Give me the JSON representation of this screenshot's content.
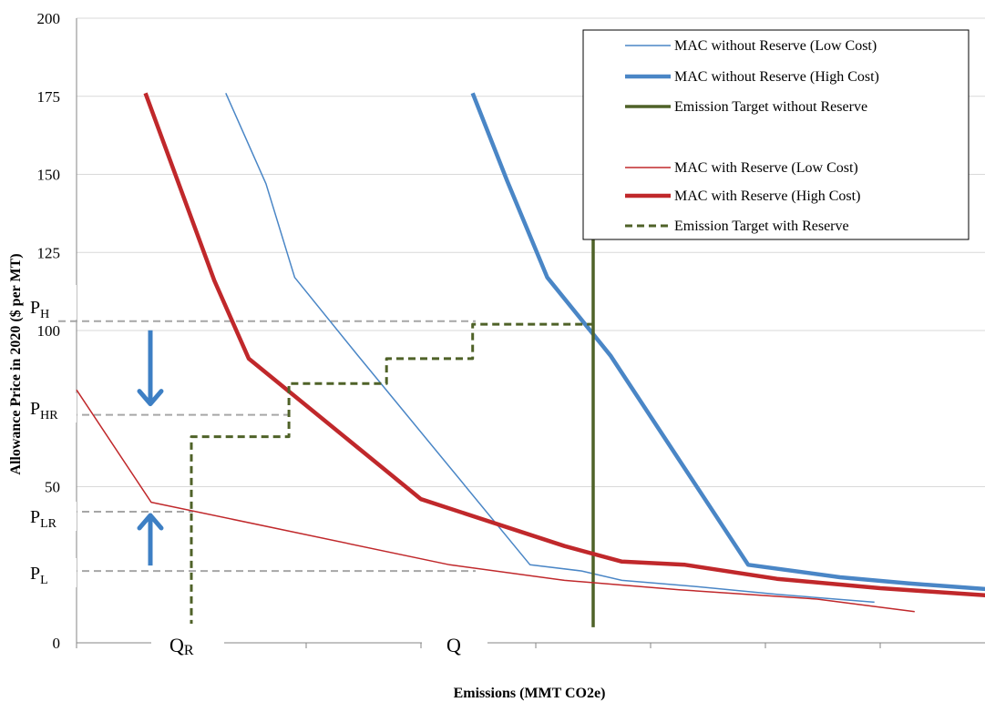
{
  "chart_data": {
    "type": "line",
    "title": "",
    "xlabel": "Emissions (MMT CO2e)",
    "ylabel": "Allowance Price in 2020 ($ per MT)",
    "ylim": [
      0,
      200
    ],
    "yticks": [
      0,
      50,
      100,
      125,
      150,
      175,
      200
    ],
    "grid": true,
    "legend_position": "top-right",
    "series": [
      {
        "name": "MAC without Reserve (Low Cost)",
        "color": "#4a86c6",
        "width": 1.5,
        "dash": "",
        "x": [
          1.3,
          1.65,
          1.9,
          2.45,
          3.95,
          4.4,
          4.75,
          5.4,
          6.1,
          6.95
        ],
        "y": [
          176,
          147,
          117,
          92,
          25,
          23,
          20,
          18,
          15.5,
          13
        ]
      },
      {
        "name": "MAC without Reserve (High Cost)",
        "color": "#4a86c6",
        "width": 4.5,
        "dash": "",
        "x": [
          3.45,
          3.75,
          4.1,
          4.65,
          5.85,
          6.65,
          7.25,
          8.0,
          8.8
        ],
        "y": [
          176,
          148,
          117,
          92,
          25,
          21,
          19,
          17,
          14
        ]
      },
      {
        "name": "Emission Target without Reserve",
        "color": "#4f6228",
        "width": 3.5,
        "dash": "",
        "x": [
          4.5,
          4.5
        ],
        "y": [
          176,
          5
        ]
      },
      {
        "name": "MAC with Reserve (Low Cost)",
        "color": "#c0282b",
        "width": 1.5,
        "dash": "",
        "x": [
          0,
          0.65,
          3.25,
          4.25,
          5.25,
          6.45,
          7.3
        ],
        "y": [
          81,
          45,
          25,
          20,
          17,
          14,
          10
        ]
      },
      {
        "name": "MAC with Reserve (High Cost)",
        "color": "#c0282b",
        "width": 4.5,
        "dash": "",
        "x": [
          0.6,
          1.2,
          1.5,
          3.0,
          4.25,
          4.75,
          5.3,
          6.1,
          7.0,
          8.0
        ],
        "y": [
          176,
          116,
          91,
          46,
          31,
          26,
          25,
          20.5,
          17.5,
          15
        ]
      },
      {
        "name": "Emission Target  with Reserve",
        "color": "#4f6228",
        "width": 3,
        "dash": "8,5",
        "x": [
          1.0,
          1.0,
          1.85,
          1.85,
          2.7,
          2.7,
          3.45,
          3.45,
          4.5
        ],
        "y": [
          5,
          66,
          66,
          83,
          83,
          91,
          91,
          102,
          102
        ]
      }
    ],
    "reference_lines": [
      {
        "label": "P_H",
        "y": 103
      },
      {
        "label": "P_HR",
        "y": 73
      },
      {
        "label": "P_LR",
        "y": 42
      },
      {
        "label": "P_L",
        "y": 23
      }
    ],
    "arrows": [
      {
        "direction": "down",
        "from": "P_H",
        "to": "P_HR"
      },
      {
        "direction": "up",
        "from": "P_L",
        "to": "P_LR"
      }
    ],
    "annotations": {
      "price_labels": [
        {
          "main": "P",
          "sub": "H"
        },
        {
          "main": "P",
          "sub": "HR"
        },
        {
          "main": "P",
          "sub": "LR"
        },
        {
          "main": "P",
          "sub": "L"
        }
      ],
      "quantity_labels": [
        {
          "main": "Q",
          "sub": "R"
        },
        {
          "main": "Q",
          "sub": ""
        }
      ]
    }
  }
}
